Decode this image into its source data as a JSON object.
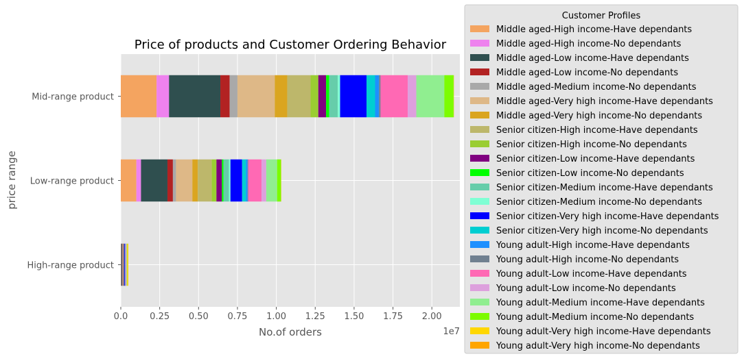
{
  "chart_data": {
    "type": "bar",
    "orientation": "horizontal",
    "stacked": true,
    "title": "Price of products and Customer Ordering Behavior",
    "xlabel": "No.of orders",
    "ylabel": "price range",
    "x_scale_label": "1e7",
    "xlim": [
      0,
      21800000
    ],
    "x_ticks": [
      0,
      2500000,
      5000000,
      7500000,
      10000000,
      12500000,
      15000000,
      17500000,
      20000000
    ],
    "x_tick_labels": [
      "0.0",
      "0.25",
      "0.50",
      "0.75",
      "1.00",
      "1.25",
      "1.50",
      "1.75",
      "2.00"
    ],
    "grid": true,
    "legend_title": "Customer Profiles",
    "legend_position": "right-outside",
    "categories": [
      "High-range product",
      "Low-range product",
      "Mid-range product"
    ],
    "series": [
      {
        "name": "Middle aged-High income-Have dependants",
        "color": "#f4a460",
        "values": [
          15000,
          1000000,
          2300000
        ]
      },
      {
        "name": "Middle aged-High income-No dependants",
        "color": "#ee82ee",
        "values": [
          10000,
          300000,
          800000
        ]
      },
      {
        "name": "Middle aged-Low income-Have dependants",
        "color": "#2f4f4f",
        "values": [
          60000,
          1700000,
          3300000
        ]
      },
      {
        "name": "Middle aged-Low income-No dependants",
        "color": "#b22222",
        "values": [
          20000,
          350000,
          600000
        ]
      },
      {
        "name": "Middle aged-Medium income-No dependants",
        "color": "#a9a9a9",
        "values": [
          10000,
          200000,
          500000
        ]
      },
      {
        "name": "Middle aged-Very high income-Have dependants",
        "color": "#deb887",
        "values": [
          15000,
          1050000,
          2400000
        ]
      },
      {
        "name": "Middle aged-Very high income-No dependants",
        "color": "#daa520",
        "values": [
          10000,
          350000,
          800000
        ]
      },
      {
        "name": "Senior citizen-High income-Have dependants",
        "color": "#bdb76b",
        "values": [
          15000,
          900000,
          1500000
        ]
      },
      {
        "name": "Senior citizen-High income-No dependants",
        "color": "#9acd32",
        "values": [
          10000,
          300000,
          500000
        ]
      },
      {
        "name": "Senior citizen-Low income-Have dependants",
        "color": "#800080",
        "values": [
          40000,
          350000,
          500000
        ]
      },
      {
        "name": "Senior citizen-Low income-No dependants",
        "color": "#00ff00",
        "values": [
          10000,
          100000,
          200000
        ]
      },
      {
        "name": "Senior citizen-Medium income-Have dependants",
        "color": "#66cdaa",
        "values": [
          10000,
          350000,
          550000
        ]
      },
      {
        "name": "Senior citizen-Medium income-No dependants",
        "color": "#7fffd4",
        "values": [
          5000,
          100000,
          150000
        ]
      },
      {
        "name": "Senior citizen-Very high income-Have dependants",
        "color": "#0000ff",
        "values": [
          40000,
          750000,
          1700000
        ]
      },
      {
        "name": "Senior citizen-Very high income-No dependants",
        "color": "#00ced1",
        "values": [
          10000,
          250000,
          550000
        ]
      },
      {
        "name": "Young adult-High income-Have dependants",
        "color": "#1e90ff",
        "values": [
          15000,
          100000,
          250000
        ]
      },
      {
        "name": "Young adult-High income-No dependants",
        "color": "#708090",
        "values": [
          10000,
          50000,
          100000
        ]
      },
      {
        "name": "Young adult-Low income-Have dependants",
        "color": "#ff69b4",
        "values": [
          40000,
          850000,
          1750000
        ]
      },
      {
        "name": "Young adult-Low income-No dependants",
        "color": "#dda0dd",
        "values": [
          10000,
          300000,
          550000
        ]
      },
      {
        "name": "Young adult-Medium income-Have dependants",
        "color": "#90ee90",
        "values": [
          40000,
          700000,
          1800000
        ]
      },
      {
        "name": "Young adult-Medium income-No dependants",
        "color": "#7cfc00",
        "values": [
          15000,
          250000,
          600000
        ]
      },
      {
        "name": "Young adult-Very high income-Have dependants",
        "color": "#ffd700",
        "values": [
          60000,
          10000,
          10000
        ]
      },
      {
        "name": "Young adult-Very high income-No dependants",
        "color": "#ffa500",
        "values": [
          15000,
          10000,
          10000
        ]
      }
    ]
  }
}
